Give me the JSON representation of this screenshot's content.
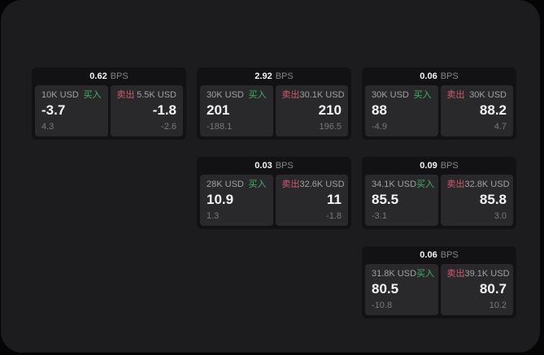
{
  "labels": {
    "bps_unit": "BPS",
    "buy": "买入",
    "sell": "卖出"
  },
  "colors": {
    "bg": "#050506",
    "container": "#1c1c1e",
    "card": "#121214",
    "panel": "#29292b",
    "buy_green": "#42b268",
    "sell_red": "#d05a6e",
    "text_primary": "#f5f5f6",
    "text_secondary": "#a0a0a4",
    "text_muted": "#79797d",
    "text_unit": "#87878b"
  },
  "cards": [
    {
      "bps": "0.62",
      "buy": {
        "amount": "10K USD",
        "value": "-3.7",
        "sub": "4.3"
      },
      "sell": {
        "amount": "5.5K USD",
        "value": "-1.8",
        "sub": "-2.6"
      }
    },
    {
      "bps": "2.92",
      "buy": {
        "amount": "30K USD",
        "value": "201",
        "sub": "-188.1"
      },
      "sell": {
        "amount": "30.1K USD",
        "value": "210",
        "sub": "196.5"
      }
    },
    {
      "bps": "0.06",
      "buy": {
        "amount": "30K USD",
        "value": "88",
        "sub": "-4.9"
      },
      "sell": {
        "amount": "30K USD",
        "value": "88.2",
        "sub": "4.7"
      }
    },
    {
      "bps": "0.03",
      "buy": {
        "amount": "28K USD",
        "value": "10.9",
        "sub": "1.3"
      },
      "sell": {
        "amount": "32.6K USD",
        "value": "11",
        "sub": "-1.8"
      }
    },
    {
      "bps": "0.09",
      "buy": {
        "amount": "34.1K USD",
        "value": "85.5",
        "sub": "-3.1"
      },
      "sell": {
        "amount": "32.8K USD",
        "value": "85.8",
        "sub": "3.0"
      }
    },
    {
      "bps": "0.06",
      "buy": {
        "amount": "31.8K USD",
        "value": "80.5",
        "sub": "-10.8"
      },
      "sell": {
        "amount": "39.1K USD",
        "value": "80.7",
        "sub": "10.2"
      }
    }
  ]
}
